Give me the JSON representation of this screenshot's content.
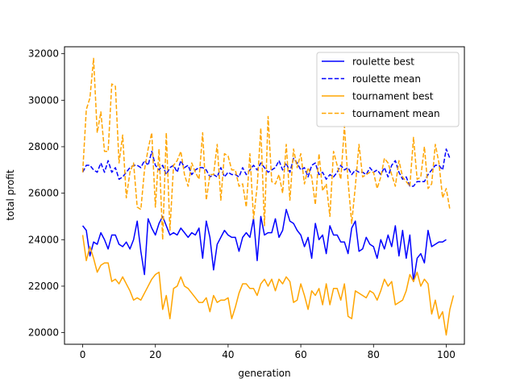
{
  "chart_data": {
    "type": "line",
    "xlabel": "generation",
    "ylabel": "total profit",
    "xlim": [
      -5,
      105
    ],
    "ylim": [
      19500,
      32300
    ],
    "xticks": [
      0,
      20,
      40,
      60,
      80,
      100
    ],
    "yticks": [
      20000,
      22000,
      24000,
      26000,
      28000,
      30000,
      32000
    ],
    "grid": false,
    "legend_position": "top-right",
    "series": [
      {
        "name": "roulette best",
        "color": "#0000ff",
        "style": "solid",
        "values": [
          24600,
          24400,
          23300,
          23900,
          23800,
          24300,
          24000,
          23600,
          24200,
          24200,
          23800,
          23700,
          23900,
          23600,
          24000,
          24800,
          23500,
          22500,
          24900,
          24500,
          24200,
          24700,
          25000,
          24600,
          24200,
          24300,
          24200,
          24500,
          24300,
          24100,
          24300,
          24200,
          24500,
          23200,
          24800,
          24100,
          22700,
          23800,
          24100,
          24400,
          24200,
          24100,
          24100,
          23500,
          24100,
          24300,
          24100,
          24900,
          23100,
          25000,
          24200,
          24300,
          24300,
          24900,
          24100,
          24400,
          25300,
          24800,
          24700,
          24400,
          24200,
          23700,
          24100,
          23200,
          24700,
          24000,
          24200,
          23400,
          24600,
          24200,
          24200,
          23900,
          23900,
          23400,
          24500,
          24800,
          23500,
          23600,
          24100,
          23800,
          23700,
          23200,
          24000,
          23600,
          24200,
          23700,
          24600,
          23300,
          24400,
          23200,
          24200,
          22200,
          23200,
          23400,
          23000,
          24400,
          23700,
          23800,
          23900,
          23900,
          24000
        ]
      },
      {
        "name": "roulette mean",
        "color": "#0000ff",
        "style": "dashed",
        "values": [
          26900,
          27200,
          27200,
          27000,
          26900,
          27300,
          26900,
          27400,
          26900,
          27100,
          26600,
          26700,
          26900,
          27100,
          27200,
          27200,
          27100,
          27400,
          27200,
          27800,
          27200,
          27000,
          27200,
          26800,
          27100,
          27200,
          26900,
          27400,
          27100,
          27200,
          26800,
          27000,
          27100,
          27100,
          27000,
          26700,
          26800,
          26700,
          27100,
          26700,
          26900,
          26800,
          26800,
          26700,
          27100,
          26800,
          27000,
          27200,
          27000,
          27300,
          27100,
          26900,
          27000,
          27100,
          27400,
          27000,
          27300,
          26900,
          27500,
          27300,
          27000,
          27100,
          26700,
          27200,
          27300,
          26800,
          26900,
          26600,
          26800,
          26700,
          26900,
          27200,
          27000,
          27100,
          26800,
          27000,
          26900,
          26900,
          26800,
          27100,
          26900,
          27000,
          26800,
          27100,
          26700,
          27200,
          27400,
          26900,
          26600,
          26700,
          26300,
          26300,
          26500,
          26500,
          26500,
          26800,
          27000,
          27200,
          27200,
          27000,
          27900,
          27500
        ]
      },
      {
        "name": "tournament best",
        "color": "#ffa500",
        "style": "solid",
        "values": [
          24200,
          23100,
          23700,
          23200,
          22600,
          22900,
          23000,
          23000,
          22200,
          22300,
          22100,
          22400,
          22100,
          21800,
          21400,
          21500,
          21400,
          21700,
          22000,
          22300,
          22500,
          22600,
          21000,
          21600,
          20600,
          21900,
          22000,
          22400,
          22000,
          21900,
          21700,
          21500,
          21300,
          21300,
          21500,
          20900,
          21600,
          21300,
          21400,
          21400,
          21500,
          20600,
          21100,
          21700,
          22100,
          22100,
          21900,
          21900,
          21600,
          22100,
          22300,
          22000,
          22300,
          21800,
          22300,
          22100,
          22400,
          22200,
          21300,
          21400,
          22100,
          21600,
          21000,
          21800,
          21600,
          21900,
          21200,
          22100,
          21200,
          21900,
          21900,
          21400,
          22100,
          20700,
          20600,
          21800,
          21700,
          21600,
          21500,
          21800,
          21700,
          21400,
          21800,
          22300,
          22000,
          22200,
          21200,
          21300,
          21400,
          21800,
          22500,
          22200,
          22600,
          22000,
          22300,
          22100,
          20800,
          21400,
          20600,
          20900,
          19900,
          21000,
          21600
        ]
      },
      {
        "name": "tournament mean",
        "color": "#ffa500",
        "style": "dashed",
        "values": [
          26900,
          29600,
          30100,
          31800,
          28600,
          29500,
          27800,
          27800,
          30700,
          30600,
          27300,
          28500,
          25800,
          26900,
          27300,
          25400,
          25300,
          27000,
          27900,
          28600,
          25400,
          27900,
          24000,
          28600,
          24400,
          27200,
          27400,
          27800,
          26800,
          26300,
          27300,
          26900,
          26600,
          28600,
          25700,
          26800,
          26800,
          28100,
          25700,
          27700,
          27600,
          27000,
          27000,
          26300,
          26400,
          25400,
          27700,
          24900,
          26300,
          28800,
          24600,
          29300,
          26500,
          26400,
          26800,
          26000,
          28100,
          25700,
          27900,
          27100,
          27700,
          26400,
          27100,
          26700,
          25500,
          27700,
          26100,
          26400,
          25000,
          27800,
          27200,
          26600,
          28900,
          26500,
          24700,
          26300,
          28100,
          26700,
          26800,
          26900,
          26900,
          26200,
          26700,
          27500,
          27300,
          26800,
          26300,
          27400,
          26700,
          26500,
          26300,
          28400,
          26600,
          26700,
          28000,
          26200,
          26400,
          28100,
          27300,
          25800,
          26200,
          25300
        ]
      }
    ]
  }
}
